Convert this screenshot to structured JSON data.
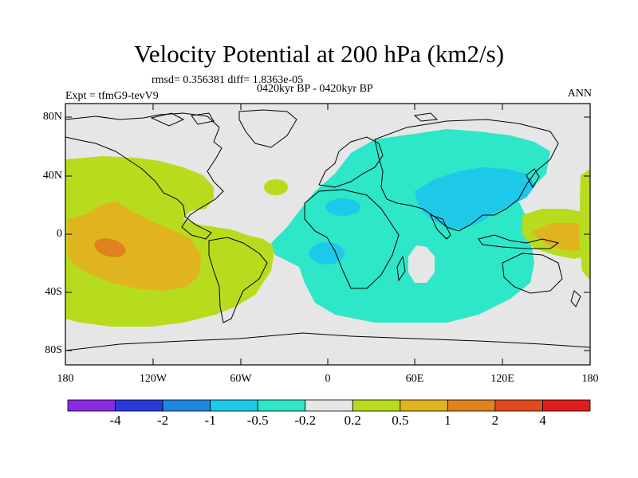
{
  "title": "Velocity Potential at 200 hPa (km2/s)",
  "stats_line": "rmsd= 0.356381 diff= 1.8363e-05",
  "period_line": "0420kyr BP - 0420kyr BP",
  "experiment": "Expt = tfmG9-tevV9",
  "season": "ANN",
  "lat_labels": [
    "80N",
    "40N",
    "0",
    "40S",
    "80S"
  ],
  "lon_labels": [
    "180",
    "120W",
    "60W",
    "0",
    "60E",
    "120E",
    "180"
  ],
  "colors": {
    "purple": "#8a2be2",
    "dark_blue": "#2a3ad8",
    "blue": "#1e88e0",
    "light_blue": "#1ec8e8",
    "cyan": "#2ee6c8",
    "gray": "#e6e6e6",
    "yellow_green": "#b7dc1e",
    "gold": "#e0b41e",
    "orange": "#e0821e",
    "orange_red": "#e04a1e",
    "red": "#e01e1e",
    "land_outline": "#000000"
  },
  "colorbar": {
    "colors": [
      "#8a2be2",
      "#2a3ad8",
      "#1e88e0",
      "#1ec8e8",
      "#2ee6c8",
      "#e6e6e6",
      "#b7dc1e",
      "#e0b41e",
      "#e0821e",
      "#e04a1e",
      "#e01e1e"
    ],
    "labels": [
      "-4",
      "-2",
      "-1",
      "-0.5",
      "-0.2",
      "0.2",
      "0.5",
      "1",
      "2",
      "4"
    ]
  },
  "field": {
    "regions": [
      {
        "name": "positive-pacific-region",
        "level": "0.2 to 0.5",
        "color": "#b7dc1e"
      },
      {
        "name": "positive-pacific-core",
        "level": "0.5 to 1",
        "color": "#e0b41e"
      },
      {
        "name": "positive-pacific-max",
        "level": "1 to 2",
        "color": "#e0821e"
      },
      {
        "name": "negative-afro-asian-region",
        "level": "-0.5 to -0.2",
        "color": "#2ee6c8"
      },
      {
        "name": "negative-asia-core",
        "level": "-1 to -0.5",
        "color": "#1ec8e8"
      },
      {
        "name": "positive-west-pacific-region",
        "level": "0.5 to 1",
        "color": "#e0b41e"
      }
    ]
  }
}
